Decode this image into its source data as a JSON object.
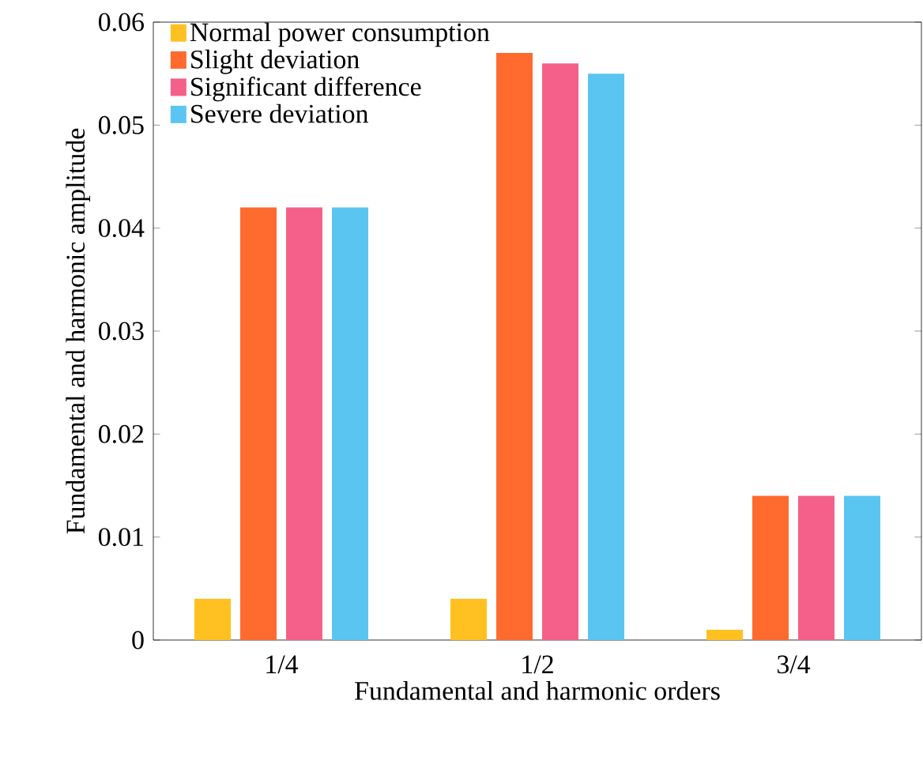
{
  "chart_data": {
    "type": "bar",
    "xlabel": "Fundamental and harmonic orders",
    "ylabel": "Fundamental and harmonic amplitude",
    "categories": [
      "1/4",
      "1/2",
      "3/4"
    ],
    "series": [
      {
        "name": "Normal power consumption",
        "color": "#ffc022",
        "values": [
          0.004,
          0.004,
          0.001
        ]
      },
      {
        "name": "Slight deviation",
        "color": "#ff6a2e",
        "values": [
          0.042,
          0.057,
          0.014
        ]
      },
      {
        "name": "Significant difference",
        "color": "#f4608a",
        "values": [
          0.042,
          0.056,
          0.014
        ]
      },
      {
        "name": "Severe deviation",
        "color": "#5bc5f2",
        "values": [
          0.042,
          0.055,
          0.014
        ]
      }
    ],
    "ylim": [
      0,
      0.06
    ],
    "yticks": [
      0,
      0.01,
      0.02,
      0.03,
      0.04,
      0.05,
      0.06
    ],
    "legend": "top left"
  }
}
